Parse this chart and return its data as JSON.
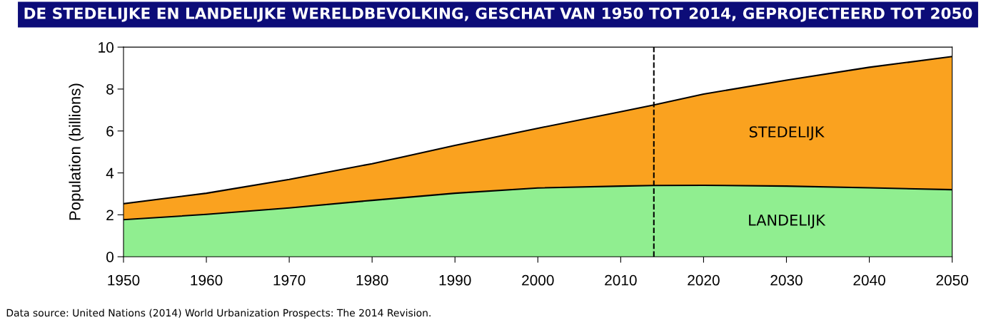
{
  "chart_data": {
    "type": "area",
    "stacked": true,
    "title": "DE STEDELIJKE EN LANDELIJKE WERELDBEVOLKING, GESCHAT VAN 1950 TOT 2014, GEPROJECTEERD TOT 2050",
    "ylabel": "Population (billions)",
    "x": [
      1950,
      1960,
      1970,
      1980,
      1990,
      2000,
      2010,
      2014,
      2020,
      2030,
      2040,
      2050
    ],
    "series": [
      {
        "name": "LANDELIJK",
        "color": "#90ee90",
        "values": [
          1.77,
          2.02,
          2.33,
          2.69,
          3.03,
          3.28,
          3.37,
          3.4,
          3.41,
          3.37,
          3.29,
          3.2
        ]
      },
      {
        "name": "STEDELIJK",
        "color": "#faa21f",
        "values": [
          0.76,
          1.01,
          1.36,
          1.75,
          2.28,
          2.85,
          3.55,
          3.84,
          4.35,
          5.05,
          5.75,
          6.35
        ]
      }
    ],
    "xlim": [
      1950,
      2050
    ],
    "xticks": [
      1950,
      1960,
      1970,
      1980,
      1990,
      2000,
      2010,
      2020,
      2030,
      2040,
      2050
    ],
    "ylim": [
      0,
      10
    ],
    "yticks": [
      0,
      2,
      4,
      6,
      8,
      10
    ],
    "ref_lines": [
      {
        "axis": "x",
        "value": 2014,
        "color": "#000000",
        "line_style": "dashed"
      }
    ],
    "grid": false,
    "legend": false,
    "annotations": [
      "Data source: United Nations (2014) World Urbanization Prospects: The 2014 Revision."
    ]
  }
}
